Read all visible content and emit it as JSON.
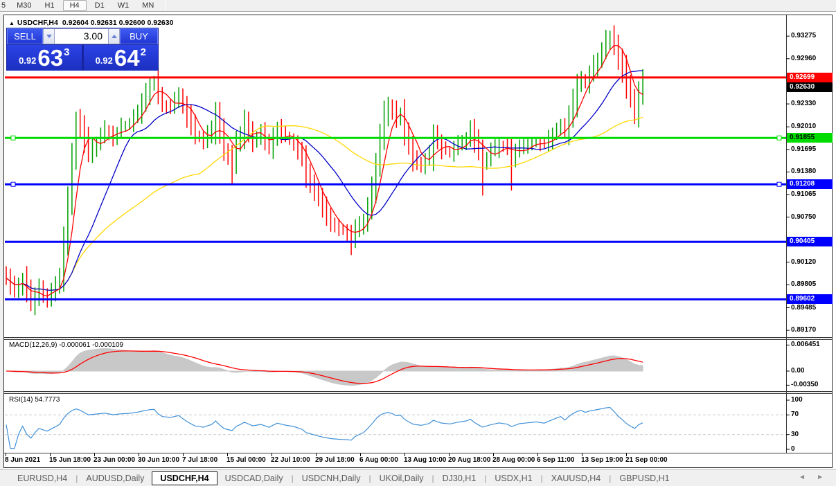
{
  "toolbar": {
    "timeframes": [
      {
        "label": "5",
        "active": false
      },
      {
        "label": "M30",
        "active": false
      },
      {
        "label": "H1",
        "active": false
      },
      {
        "label": "H4",
        "active": true
      },
      {
        "label": "D1",
        "active": false
      },
      {
        "label": "W1",
        "active": false
      },
      {
        "label": "MN",
        "active": false
      }
    ]
  },
  "title": {
    "marker": "▲",
    "symbol": "USDCHF,H4",
    "ohlc": "0.92604 0.92631 0.92600 0.92630"
  },
  "trade_panel": {
    "sell_label": "SELL",
    "buy_label": "BUY",
    "volume": "3.00",
    "sell_price_prefix": "0.92",
    "sell_price_big": "63",
    "sell_price_sup": "3",
    "buy_price_prefix": "0.92",
    "buy_price_big": "64",
    "buy_price_sup": "2"
  },
  "chart_data": {
    "type": "candlestick",
    "symbol": "USDCHF",
    "timeframe": "H4",
    "ohlc_display": {
      "open": "0.92604",
      "high": "0.92631",
      "low": "0.92600",
      "close": "0.92630"
    },
    "candle_colors": {
      "up": "#00A000",
      "down": "#FF0000"
    },
    "y_axis": {
      "ticks": [
        {
          "value": 0.93275,
          "label": "0.93275"
        },
        {
          "value": 0.9296,
          "label": "0.92960"
        },
        {
          "value": 0.9233,
          "label": "0.92330"
        },
        {
          "value": 0.9201,
          "label": "0.92010"
        },
        {
          "value": 0.91695,
          "label": "0.91695"
        },
        {
          "value": 0.9138,
          "label": "0.91380"
        },
        {
          "value": 0.91065,
          "label": "0.91065"
        },
        {
          "value": 0.9075,
          "label": "0.90750"
        },
        {
          "value": 0.9012,
          "label": "0.90120"
        },
        {
          "value": 0.89805,
          "label": "0.89805"
        },
        {
          "value": 0.89485,
          "label": "0.89485"
        },
        {
          "value": 0.8917,
          "label": "0.89170"
        }
      ]
    },
    "x_axis": {
      "labels": [
        "8 Jun 2021",
        "15 Jun 18:00",
        "23 Jun 00:00",
        "30 Jun 10:00",
        "7 Jul 18:00",
        "15 Jul 00:00",
        "22 Jul 10:00",
        "29 Jul 18:00",
        "6 Aug 00:00",
        "13 Aug 10:00",
        "20 Aug 18:00",
        "28 Aug 00:00",
        "6 Sep 11:00",
        "13 Sep 19:00",
        "21 Sep 00:00"
      ]
    },
    "current_price_tag": {
      "value": 0.9263,
      "label": "0.92630",
      "bg": "#000000",
      "text_color": "#FFFFFF"
    },
    "h_lines": [
      {
        "price": 0.92699,
        "label": "0.92699",
        "color": "#FF0000",
        "text_color": "#FFFFFF",
        "handles": false
      },
      {
        "price": 0.91855,
        "label": "0.91855",
        "color": "#00DC00",
        "text_color": "#000000",
        "handles": true
      },
      {
        "price": 0.91208,
        "label": "0.91208",
        "color": "#0000FF",
        "text_color": "#FFFFFF",
        "handles": true
      },
      {
        "price": 0.90405,
        "label": "0.90405",
        "color": "#0000FF",
        "text_color": "#FFFFFF",
        "handles": false
      },
      {
        "price": 0.89602,
        "label": "0.89602",
        "color": "#0000FF",
        "text_color": "#FFFFFF",
        "handles": false
      }
    ],
    "moving_averages": [
      {
        "period": 48,
        "color": "#FFD700"
      },
      {
        "period": 16,
        "color": "#0000C8"
      },
      {
        "period": 5,
        "color": "#FF0000"
      }
    ],
    "series": {
      "bar_count": 156,
      "close_anchors": [
        [
          0,
          0.899
        ],
        [
          2,
          0.8972
        ],
        [
          4,
          0.8988
        ],
        [
          6,
          0.8952
        ],
        [
          8,
          0.8976
        ],
        [
          10,
          0.8962
        ],
        [
          12,
          0.898
        ],
        [
          13,
          0.8992
        ],
        [
          14,
          0.904
        ],
        [
          15,
          0.91
        ],
        [
          16,
          0.916
        ],
        [
          17,
          0.921
        ],
        [
          18,
          0.92
        ],
        [
          20,
          0.9165
        ],
        [
          22,
          0.918
        ],
        [
          24,
          0.9196
        ],
        [
          26,
          0.9186
        ],
        [
          28,
          0.92
        ],
        [
          30,
          0.9206
        ],
        [
          32,
          0.9222
        ],
        [
          34,
          0.9248
        ],
        [
          35,
          0.926
        ],
        [
          36,
          0.9264
        ],
        [
          37,
          0.9245
        ],
        [
          38,
          0.9232
        ],
        [
          40,
          0.9228
        ],
        [
          42,
          0.9244
        ],
        [
          44,
          0.9216
        ],
        [
          46,
          0.919
        ],
        [
          48,
          0.9182
        ],
        [
          50,
          0.9196
        ],
        [
          51,
          0.9218
        ],
        [
          53,
          0.917
        ],
        [
          55,
          0.9152
        ],
        [
          56,
          0.9178
        ],
        [
          57,
          0.919
        ],
        [
          58,
          0.9208
        ],
        [
          60,
          0.9182
        ],
        [
          62,
          0.9192
        ],
        [
          64,
          0.9172
        ],
        [
          66,
          0.9198
        ],
        [
          68,
          0.9186
        ],
        [
          70,
          0.9178
        ],
        [
          72,
          0.916
        ],
        [
          73,
          0.9135
        ],
        [
          75,
          0.9112
        ],
        [
          77,
          0.9088
        ],
        [
          79,
          0.9068
        ],
        [
          81,
          0.9058
        ],
        [
          83,
          0.9052
        ],
        [
          84,
          0.9046
        ],
        [
          85,
          0.9058
        ],
        [
          87,
          0.9072
        ],
        [
          88,
          0.9088
        ],
        [
          89,
          0.9112
        ],
        [
          90,
          0.9148
        ],
        [
          91,
          0.9188
        ],
        [
          92,
          0.9215
        ],
        [
          93,
          0.9228
        ],
        [
          94,
          0.9222
        ],
        [
          95,
          0.921
        ],
        [
          96,
          0.9218
        ],
        [
          97,
          0.9192
        ],
        [
          98,
          0.9175
        ],
        [
          99,
          0.9158
        ],
        [
          101,
          0.9148
        ],
        [
          103,
          0.9162
        ],
        [
          104,
          0.9188
        ],
        [
          105,
          0.9178
        ],
        [
          106,
          0.917
        ],
        [
          108,
          0.9164
        ],
        [
          110,
          0.9176
        ],
        [
          112,
          0.9184
        ],
        [
          113,
          0.9196
        ],
        [
          114,
          0.918
        ],
        [
          115,
          0.9166
        ],
        [
          116,
          0.9152
        ],
        [
          118,
          0.9166
        ],
        [
          120,
          0.9176
        ],
        [
          122,
          0.917
        ],
        [
          123,
          0.9158
        ],
        [
          125,
          0.9172
        ],
        [
          127,
          0.9176
        ],
        [
          129,
          0.918
        ],
        [
          131,
          0.9176
        ],
        [
          133,
          0.919
        ],
        [
          135,
          0.9205
        ],
        [
          136,
          0.9195
        ],
        [
          137,
          0.9214
        ],
        [
          139,
          0.9258
        ],
        [
          140,
          0.9268
        ],
        [
          141,
          0.9262
        ],
        [
          142,
          0.9276
        ],
        [
          144,
          0.9296
        ],
        [
          145,
          0.9308
        ],
        [
          146,
          0.9322
        ],
        [
          147,
          0.933
        ],
        [
          148,
          0.9316
        ],
        [
          149,
          0.9296
        ],
        [
          150,
          0.928
        ],
        [
          151,
          0.9258
        ],
        [
          152,
          0.924
        ],
        [
          153,
          0.9222
        ],
        [
          154,
          0.9248
        ],
        [
          155,
          0.9263
        ]
      ],
      "wick_overrides": {
        "6": {
          "low": 0.8944
        },
        "17": {
          "high": 0.9222
        },
        "36": {
          "high": 0.9272
        },
        "55": {
          "low": 0.912
        },
        "84": {
          "low": 0.9022
        },
        "93": {
          "high": 0.9243
        },
        "116": {
          "low": 0.9105
        },
        "123": {
          "low": 0.9112
        },
        "147": {
          "high": 0.9335
        },
        "153": {
          "low": 0.9205
        }
      }
    },
    "macd": {
      "label": "MACD(12,26,9) -0.000061 -0.000109",
      "params": [
        12,
        26,
        9
      ],
      "current_values": [
        -6.1e-05,
        -0.000109
      ],
      "histogram_color": "#C8C8C8",
      "signal_color": "#FF0000",
      "ticks": [
        {
          "value": 0.006451,
          "label": "0.006451"
        },
        {
          "value": 0,
          "label": "0.00"
        },
        {
          "value": -0.0035,
          "label": "-0.00350"
        }
      ]
    },
    "rsi": {
      "label": "RSI(14) 54.7773",
      "period": 14,
      "current_value": 54.7773,
      "line_color": "#4090D8",
      "levels": [
        70,
        30
      ],
      "level_color": "#C8C8C8",
      "ticks": [
        {
          "value": 100,
          "label": "100"
        },
        {
          "value": 70,
          "label": "70"
        },
        {
          "value": 30,
          "label": "30"
        },
        {
          "value": 0,
          "label": "0"
        }
      ]
    }
  },
  "tabs": {
    "items": [
      {
        "label": "EURUSD,H4",
        "active": false
      },
      {
        "label": "AUDUSD,Daily",
        "active": false
      },
      {
        "label": "USDCHF,H4",
        "active": true
      },
      {
        "label": "USDCAD,Daily",
        "active": false
      },
      {
        "label": "USDCNH,Daily",
        "active": false
      },
      {
        "label": "UKOil,Daily",
        "active": false
      },
      {
        "label": "DJ30,H1",
        "active": false
      },
      {
        "label": "USDX,H1",
        "active": false
      },
      {
        "label": "XAUUSD,H4",
        "active": false
      },
      {
        "label": "GBPUSD,H1",
        "active": false
      }
    ],
    "scroll_left_icon": "◄",
    "scroll_right_icon": "►"
  }
}
